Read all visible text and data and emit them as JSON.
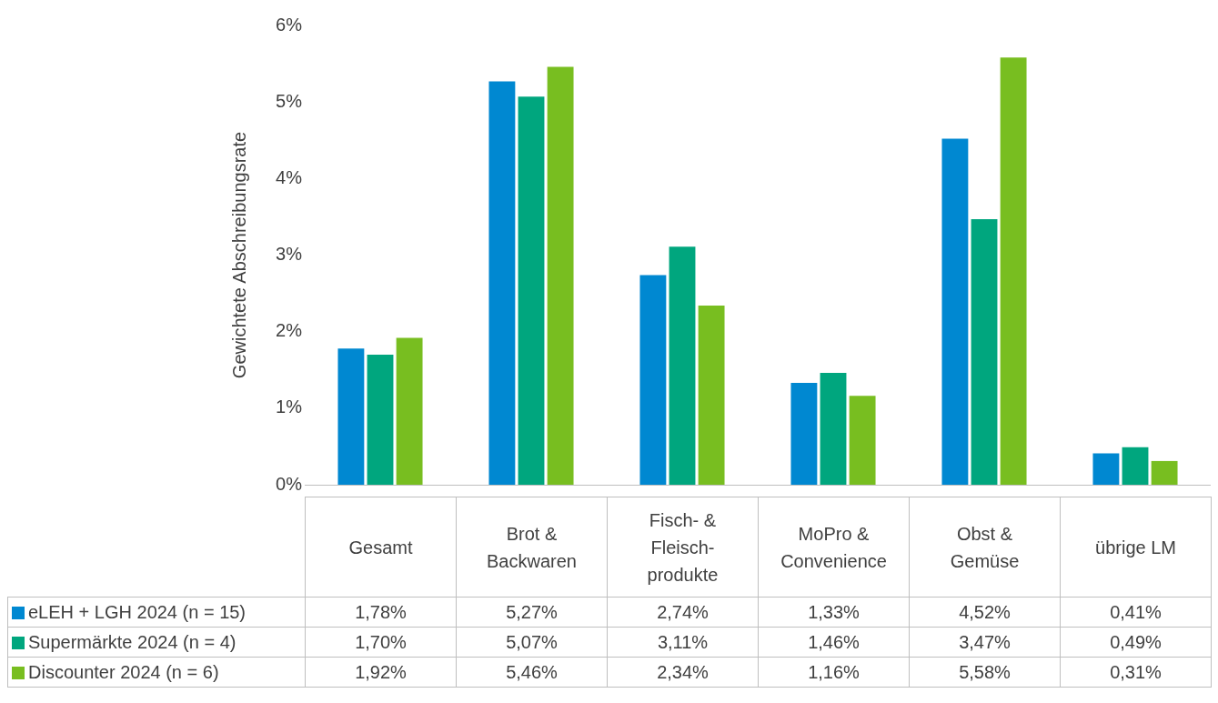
{
  "chart_data": {
    "type": "bar",
    "ylabel": "Gewichtete Abschreibungsrate",
    "categories": [
      "Gesamt",
      "Brot & Backwaren",
      "Fisch- & Fleisch-produkte",
      "MoPro & Convenience",
      "Obst & Gemüse",
      "übrige LM"
    ],
    "series": [
      {
        "name": "eLEH + LGH 2024 (n = 15)",
        "color": "#0088d1",
        "values": [
          1.78,
          5.27,
          2.74,
          1.33,
          4.52,
          0.41
        ],
        "value_labels": [
          "1,78%",
          "5,27%",
          "2,74%",
          "1,33%",
          "4,52%",
          "0,41%"
        ]
      },
      {
        "name": "Supermärkte 2024 (n = 4)",
        "color": "#00a67e",
        "values": [
          1.7,
          5.07,
          3.11,
          1.46,
          3.47,
          0.49
        ],
        "value_labels": [
          "1,70%",
          "5,07%",
          "3,11%",
          "1,46%",
          "3,47%",
          "0,49%"
        ]
      },
      {
        "name": "Discounter 2024 (n = 6)",
        "color": "#78be20",
        "values": [
          1.92,
          5.46,
          2.34,
          1.16,
          5.58,
          0.31
        ],
        "value_labels": [
          "1,92%",
          "5,46%",
          "2,34%",
          "1,16%",
          "5,58%",
          "0,31%"
        ]
      }
    ],
    "ylim": [
      0,
      6
    ],
    "yticks": [
      {
        "value": 0,
        "label": "0%"
      },
      {
        "value": 1,
        "label": "1%"
      },
      {
        "value": 2,
        "label": "2%"
      },
      {
        "value": 3,
        "label": "3%"
      },
      {
        "value": 4,
        "label": "4%"
      },
      {
        "value": 5,
        "label": "5%"
      },
      {
        "value": 6,
        "label": "6%"
      }
    ],
    "grid": false,
    "legend": "bottom left"
  }
}
